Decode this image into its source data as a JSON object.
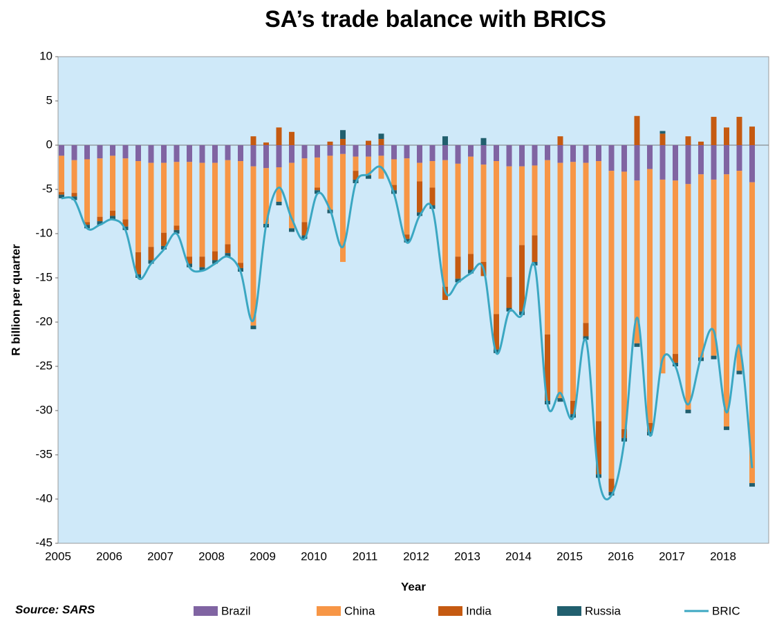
{
  "chart_data": {
    "type": "bar",
    "stacked": true,
    "title": "SA’s trade balance with BRICS",
    "x_label": "Year",
    "y_label": "R billion per quarter",
    "source": "Source: SARS",
    "categories": [
      "2005",
      null,
      null,
      null,
      "2006",
      null,
      null,
      null,
      "2007",
      null,
      null,
      null,
      "2008",
      null,
      null,
      null,
      "2009",
      null,
      null,
      null,
      "2010",
      null,
      null,
      null,
      "2011",
      null,
      null,
      null,
      "2012",
      null,
      null,
      null,
      "2013",
      null,
      null,
      null,
      "2014",
      null,
      null,
      null,
      "2015",
      null,
      null,
      null,
      "2016",
      null,
      null,
      null,
      "2017",
      null,
      null,
      null,
      "2018",
      null,
      null
    ],
    "ylim": [
      -45,
      10
    ],
    "yticks": [
      10,
      5,
      0,
      -5,
      -10,
      -15,
      -20,
      -25,
      -30,
      -35,
      -40,
      -45
    ],
    "series": [
      {
        "name": "Brazil",
        "color": "#8064a2",
        "values": [
          -1.2,
          -1.7,
          -1.6,
          -1.5,
          -1.2,
          -1.5,
          -1.8,
          -2.0,
          -2.0,
          -1.9,
          -1.9,
          -2.0,
          -2.0,
          -1.7,
          -1.8,
          -2.4,
          -2.6,
          -2.5,
          -2.0,
          -1.5,
          -1.4,
          -1.2,
          -1.0,
          -1.3,
          -1.3,
          -1.2,
          -1.6,
          -1.5,
          -2.0,
          -1.8,
          -1.7,
          -2.1,
          -1.3,
          -2.2,
          -1.8,
          -2.4,
          -2.4,
          -2.3,
          -1.7,
          -2.0,
          -1.9,
          -2.0,
          -1.8,
          -2.9,
          -3.0,
          -4.0,
          -2.7,
          -3.9,
          -4.0,
          -4.4,
          -3.3,
          -3.9,
          -3.3,
          -2.9,
          -4.2
        ]
      },
      {
        "name": "China",
        "color": "#f79646",
        "values": [
          -4.1,
          -3.7,
          -7.1,
          -6.6,
          -6.2,
          -6.9,
          -10.3,
          -9.5,
          -7.9,
          -7.2,
          -10.7,
          -10.6,
          -10,
          -9.5,
          -11.5,
          -18,
          -6.3,
          -3.9,
          -7.4,
          -7.2,
          -3.4,
          -6.1,
          -12.2,
          -1.6,
          -2.1,
          -2.6,
          -2.9,
          -8.6,
          -2.1,
          -3,
          -14.3,
          -10.5,
          -11,
          -11,
          -17.3,
          -12.5,
          -8.9,
          -7.9,
          -19.7,
          -26.6,
          -27,
          -18.1,
          -29.4,
          -34.8,
          -29.1,
          -18.4,
          -28.7,
          -21.9,
          -19.6,
          -25.5,
          -20.7,
          -19.9,
          -28.5,
          -22.6,
          -34
        ]
      },
      {
        "name": "India",
        "color": "#c55a11",
        "values": [
          -0.3,
          -0.4,
          -0.3,
          -0.5,
          -0.6,
          -0.8,
          -2.5,
          -1.5,
          -1.5,
          -0.5,
          -0.8,
          -1.2,
          -1.0,
          -1.0,
          -0.6,
          1.0,
          0.3,
          2.0,
          1.5,
          -1.5,
          -0.3,
          0.4,
          0.7,
          -1.0,
          0.5,
          0.7,
          -0.6,
          -0.5,
          -3.5,
          -2.0,
          -1.5,
          -2.5,
          -1.8,
          -1.6,
          -4.0,
          -3.5,
          -7.5,
          -3.0,
          -7.5,
          1.0,
          -1.5,
          -1.5,
          -6.0,
          -1.5,
          -1.0,
          3.3,
          -1.0,
          1.3,
          -1.0,
          1.0,
          0.4,
          3.2,
          2.0,
          3.2,
          2.1
        ]
      },
      {
        "name": "Russia",
        "color": "#215f6e",
        "values": [
          -0.4,
          -0.4,
          -0.4,
          -0.4,
          -0.4,
          -0.4,
          -0.4,
          -0.4,
          -0.4,
          -0.4,
          -0.4,
          -0.4,
          -0.4,
          -0.4,
          -0.4,
          -0.4,
          -0.4,
          -0.4,
          -0.4,
          -0.4,
          -0.4,
          -0.4,
          1.0,
          -0.4,
          -0.4,
          0.6,
          -0.4,
          -0.4,
          -0.4,
          -0.4,
          1.0,
          -0.4,
          -0.4,
          0.8,
          -0.4,
          -0.4,
          -0.4,
          -0.4,
          -0.4,
          -0.4,
          -0.4,
          -0.4,
          -0.4,
          -0.4,
          -0.4,
          -0.4,
          -0.4,
          0.3,
          -0.4,
          -0.4,
          -0.4,
          -0.4,
          -0.4,
          -0.4,
          -0.4
        ]
      },
      {
        "name": "BRIC",
        "color": "#3ba7c2",
        "type": "line",
        "values": [
          -6,
          -6.2,
          -9.4,
          -9,
          -8.4,
          -9.6,
          -15,
          -13.4,
          -11.8,
          -10,
          -13.8,
          -14.2,
          -13.4,
          -12.6,
          -14.3,
          -19.8,
          -9,
          -4.8,
          -8.3,
          -10.6,
          -5.5,
          -7.3,
          -11.5,
          -4.3,
          -3.3,
          -2.5,
          -5.5,
          -11,
          -8,
          -7.2,
          -16.5,
          -15.5,
          -14.5,
          -14,
          -23.5,
          -18.8,
          -19.2,
          -13.6,
          -29.3,
          -28,
          -30.8,
          -22,
          -37.6,
          -39.6,
          -33.5,
          -19.5,
          -32.8,
          -24.2,
          -25,
          -29.3,
          -24,
          -21,
          -30.2,
          -22.7,
          -36.5
        ]
      }
    ]
  }
}
